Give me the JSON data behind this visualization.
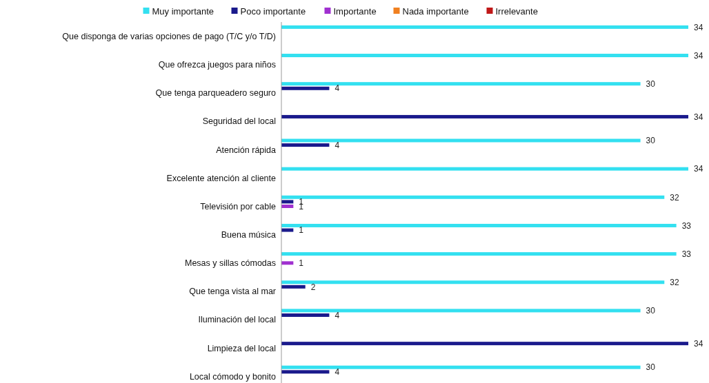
{
  "chart_data": {
    "type": "bar",
    "orientation": "horizontal",
    "categories": [
      "Que disponga de varias opciones de pago (T/C y/o T/D)",
      "Que ofrezca juegos para niños",
      "Que tenga parqueadero seguro",
      "Seguridad del local",
      "Atención rápida",
      "Excelente atención al cliente",
      "Televisión por cable",
      "Buena música",
      "Mesas y sillas cómodas",
      "Que tenga vista al mar",
      "Iluminación del local",
      "Limpieza del local",
      "Local cómodo y bonito"
    ],
    "series": [
      {
        "name": "Muy importante",
        "color": "#33e0f0",
        "values": [
          34,
          34,
          30,
          null,
          30,
          34,
          32,
          33,
          33,
          32,
          30,
          null,
          30
        ]
      },
      {
        "name": "Poco importante",
        "color": "#1a1a8c",
        "values": [
          null,
          null,
          4,
          34,
          4,
          null,
          1,
          1,
          null,
          2,
          4,
          34,
          4
        ]
      },
      {
        "name": "Importante",
        "color": "#a030d0",
        "values": [
          null,
          null,
          null,
          null,
          null,
          null,
          1,
          null,
          1,
          null,
          null,
          null,
          null
        ]
      },
      {
        "name": "Nada importante",
        "color": "#f08020",
        "values": [
          null,
          null,
          null,
          null,
          null,
          null,
          null,
          null,
          null,
          null,
          null,
          null,
          null
        ]
      },
      {
        "name": "Irrelevante",
        "color": "#c01818",
        "values": [
          null,
          null,
          null,
          null,
          null,
          null,
          null,
          null,
          null,
          null,
          null,
          null,
          null
        ]
      }
    ],
    "xlim": [
      0,
      34
    ],
    "data_labels": true,
    "legend": "top",
    "grid": false,
    "tick_labels": "y"
  }
}
